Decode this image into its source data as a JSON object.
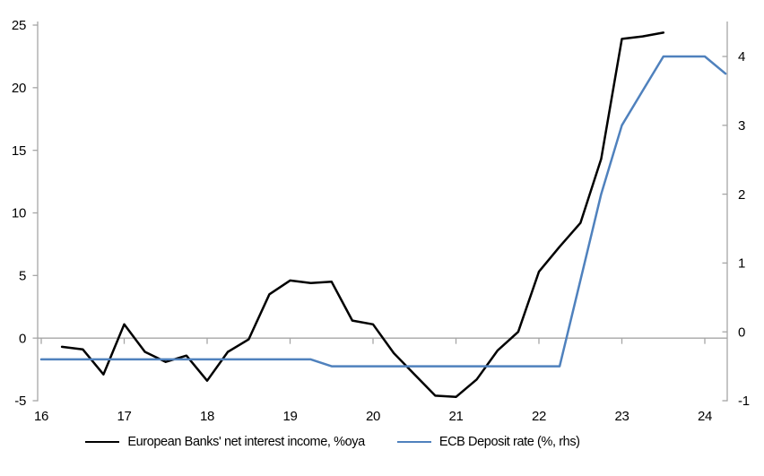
{
  "chart_data": {
    "type": "line",
    "title": "",
    "grid": "zero-line-only",
    "legend_position": "bottom",
    "x_axis": {
      "tick_labels": [
        "16",
        "17",
        "18",
        "19",
        "20",
        "21",
        "22",
        "23",
        "24"
      ],
      "tick_values": [
        16,
        17,
        18,
        19,
        20,
        21,
        22,
        23,
        24
      ],
      "range": [
        16,
        24.3
      ]
    },
    "left_axis": {
      "tick_labels": [
        "25",
        "20",
        "15",
        "10",
        "5",
        "0",
        "-5"
      ],
      "tick_values": [
        25,
        20,
        15,
        10,
        5,
        0,
        -5
      ],
      "range": [
        -5,
        25
      ]
    },
    "right_axis": {
      "tick_labels": [
        "4",
        "3",
        "2",
        "1",
        "0",
        "-1"
      ],
      "tick_values": [
        4,
        3,
        2,
        1,
        0,
        -1
      ],
      "range": [
        -1,
        4
      ]
    },
    "series": [
      {
        "name": "European Banks' net interest income, %oya",
        "axis": "left",
        "color": "#000000",
        "x": [
          16.25,
          16.5,
          16.75,
          17,
          17.25,
          17.5,
          17.75,
          18,
          18.25,
          18.5,
          18.75,
          19,
          19.25,
          19.5,
          19.75,
          20,
          20.25,
          20.5,
          20.75,
          21,
          21.25,
          21.5,
          21.75,
          22,
          22.25,
          22.5,
          22.75,
          23,
          23.25,
          23.5
        ],
        "values": [
          -0.7,
          -0.9,
          -2.9,
          1.1,
          -1.1,
          -1.9,
          -1.4,
          -3.4,
          -1.1,
          -0.1,
          3.5,
          4.6,
          4.4,
          4.5,
          1.4,
          1.1,
          -1.2,
          -2.9,
          -4.6,
          -4.7,
          -3.3,
          -1.0,
          0.5,
          5.3,
          7.3,
          9.2,
          14.3,
          23.9,
          24.1,
          24.4
        ]
      },
      {
        "name": "ECB Deposit rate (%, rhs)",
        "axis": "right",
        "color": "#4F81BD",
        "x": [
          16,
          16.25,
          16.5,
          16.75,
          17,
          17.25,
          17.5,
          17.75,
          18,
          18.25,
          18.5,
          18.75,
          19,
          19.25,
          19.5,
          19.75,
          20,
          20.25,
          20.5,
          20.75,
          21,
          21.25,
          21.5,
          21.75,
          22,
          22.25,
          22.5,
          22.75,
          23,
          23.25,
          23.5,
          23.75,
          24,
          24.25
        ],
        "values": [
          -0.4,
          -0.4,
          -0.4,
          -0.4,
          -0.4,
          -0.4,
          -0.4,
          -0.4,
          -0.4,
          -0.4,
          -0.4,
          -0.4,
          -0.4,
          -0.4,
          -0.5,
          -0.5,
          -0.5,
          -0.5,
          -0.5,
          -0.5,
          -0.5,
          -0.5,
          -0.5,
          -0.5,
          -0.5,
          -0.5,
          0.75,
          2.0,
          3.0,
          3.5,
          4.0,
          4.0,
          4.0,
          3.75
        ]
      }
    ],
    "colors": {
      "axis": "#A6A6A6",
      "zero_line": "#A6A6A6",
      "text": "#000000"
    }
  }
}
